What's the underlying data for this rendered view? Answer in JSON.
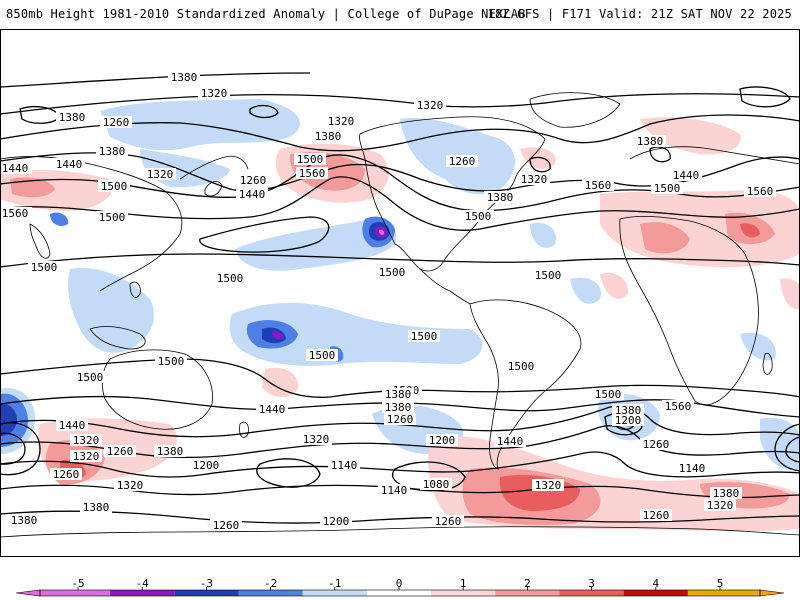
{
  "header": {
    "left_title": "850mb Height 1981-2010 Standardized Anomaly | College of DuPage NEXLAB",
    "right_title": "18Z GFS | F171 Valid: 21Z SAT NOV 22 2025"
  },
  "colors": {
    "neg5": "#e36bd9",
    "neg4": "#8a17c2",
    "neg3": "#1f3fb8",
    "neg2": "#4d7fe6",
    "neg1": "#c3dbf6",
    "zero": "#ffffff",
    "pos1": "#fbd3d3",
    "pos2": "#f39a9a",
    "pos3": "#e85e5e",
    "pos4": "#c00d0d",
    "pos5": "#f0a400",
    "contour": "#000000",
    "coast": "#000000"
  },
  "colorbar": {
    "ticks": [
      "-5",
      "-4",
      "-3",
      "-2",
      "-1",
      "0",
      "1",
      "2",
      "3",
      "4",
      "5"
    ]
  },
  "contour_labels": [
    {
      "text": "1380"
    },
    {
      "text": "1320"
    },
    {
      "text": "1260"
    },
    {
      "text": "1320"
    },
    {
      "text": "1380"
    },
    {
      "text": "1440"
    },
    {
      "text": "1500"
    },
    {
      "text": "1560"
    },
    {
      "text": "1500"
    },
    {
      "text": "1560"
    },
    {
      "text": "1320"
    },
    {
      "text": "1260"
    },
    {
      "text": "1440"
    },
    {
      "text": "1380"
    },
    {
      "text": "1500"
    },
    {
      "text": "1260"
    },
    {
      "text": "1380"
    },
    {
      "text": "1320"
    },
    {
      "text": "1500"
    },
    {
      "text": "1560"
    },
    {
      "text": "1320"
    },
    {
      "text": "1380"
    },
    {
      "text": "1440"
    },
    {
      "text": "1500"
    },
    {
      "text": "1560"
    },
    {
      "text": "1440"
    },
    {
      "text": "1380"
    },
    {
      "text": "1500"
    },
    {
      "text": "1500"
    },
    {
      "text": "1500"
    },
    {
      "text": "1500"
    },
    {
      "text": "1500"
    },
    {
      "text": "1500"
    },
    {
      "text": "1500"
    },
    {
      "text": "1500"
    },
    {
      "text": "1440"
    },
    {
      "text": "1440"
    },
    {
      "text": "1500"
    },
    {
      "text": "1320"
    },
    {
      "text": "1260"
    },
    {
      "text": "1380"
    },
    {
      "text": "1260"
    },
    {
      "text": "1200"
    },
    {
      "text": "1320"
    },
    {
      "text": "1380"
    },
    {
      "text": "1140"
    },
    {
      "text": "1080"
    },
    {
      "text": "1140"
    },
    {
      "text": "1200"
    },
    {
      "text": "1260"
    },
    {
      "text": "1380"
    },
    {
      "text": "1260"
    },
    {
      "text": "1380"
    },
    {
      "text": "1320"
    },
    {
      "text": "1200"
    },
    {
      "text": "1380"
    },
    {
      "text": "1320"
    },
    {
      "text": "1500"
    },
    {
      "text": "1380"
    },
    {
      "text": "1440"
    },
    {
      "text": "1500"
    },
    {
      "text": "1260"
    },
    {
      "text": "1200"
    },
    {
      "text": "1260"
    },
    {
      "text": "1140"
    },
    {
      "text": "1560"
    },
    {
      "text": "1320"
    },
    {
      "text": "1260"
    },
    {
      "text": "1380"
    },
    {
      "text": "1320"
    }
  ]
}
